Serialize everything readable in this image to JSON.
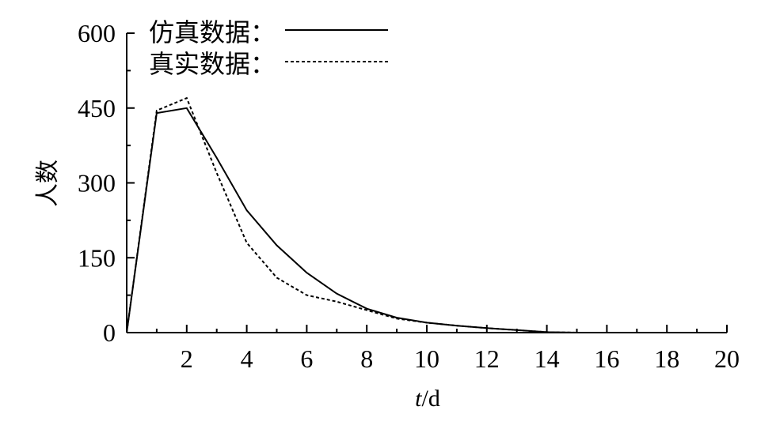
{
  "chart_data": {
    "type": "line",
    "xlabel_italic": "t",
    "xlabel_rest": "/d",
    "ylabel": "人数",
    "xlim": [
      0,
      20
    ],
    "ylim": [
      0,
      600
    ],
    "xticks": [
      2,
      4,
      6,
      8,
      10,
      12,
      14,
      16,
      18,
      20
    ],
    "yticks": [
      0,
      150,
      300,
      450,
      600
    ],
    "legend_position": "top-center",
    "grid": false,
    "series": [
      {
        "name": "仿真数据：",
        "style": "solid",
        "color": "#000000",
        "x": [
          0,
          1,
          2,
          3,
          4,
          5,
          6,
          7,
          8,
          9,
          10,
          11,
          12,
          13,
          14,
          15,
          16,
          17,
          18,
          19,
          20
        ],
        "y": [
          0,
          440,
          450,
          350,
          245,
          175,
          120,
          78,
          48,
          30,
          20,
          14,
          9,
          5,
          1,
          0,
          0,
          0,
          0,
          0,
          0
        ]
      },
      {
        "name": "真实数据：",
        "style": "dashed",
        "color": "#000000",
        "x": [
          0,
          1,
          2,
          3,
          4,
          5,
          6,
          7,
          8,
          9,
          10,
          11,
          12,
          13,
          14,
          15,
          16,
          17,
          18,
          19,
          20
        ],
        "y": [
          0,
          445,
          470,
          320,
          180,
          110,
          75,
          62,
          45,
          28,
          20,
          14,
          9,
          5,
          1,
          0,
          0,
          0,
          0,
          0,
          0
        ]
      }
    ]
  }
}
